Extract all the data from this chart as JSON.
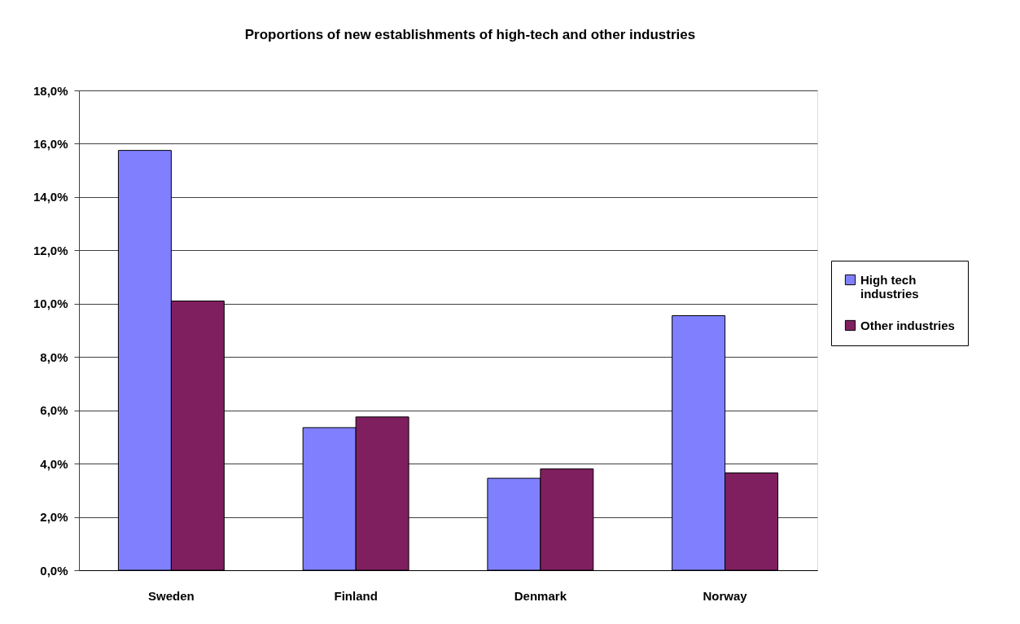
{
  "chart_data": {
    "type": "bar",
    "title": "Proportions of new establishments of high-tech and other industries",
    "categories": [
      "Sweden",
      "Finland",
      "Denmark",
      "Norway"
    ],
    "series": [
      {
        "name": "High tech industries",
        "color": "#8080ff",
        "values": [
          15.75,
          5.35,
          3.45,
          9.55
        ]
      },
      {
        "name": "Other industries",
        "color": "#7f1f5f",
        "values": [
          10.1,
          5.75,
          3.8,
          3.65
        ]
      }
    ],
    "ylim": [
      0,
      18
    ],
    "yticks": [
      {
        "value": 0,
        "label": "0,0%"
      },
      {
        "value": 2,
        "label": "2,0%"
      },
      {
        "value": 4,
        "label": "4,0%"
      },
      {
        "value": 6,
        "label": "6,0%"
      },
      {
        "value": 8,
        "label": "8,0%"
      },
      {
        "value": 10,
        "label": "10,0%"
      },
      {
        "value": 12,
        "label": "12,0%"
      },
      {
        "value": 14,
        "label": "14,0%"
      },
      {
        "value": 16,
        "label": "16,0%"
      },
      {
        "value": 18,
        "label": "18,0%"
      }
    ],
    "grid": "y",
    "legend": "right"
  }
}
